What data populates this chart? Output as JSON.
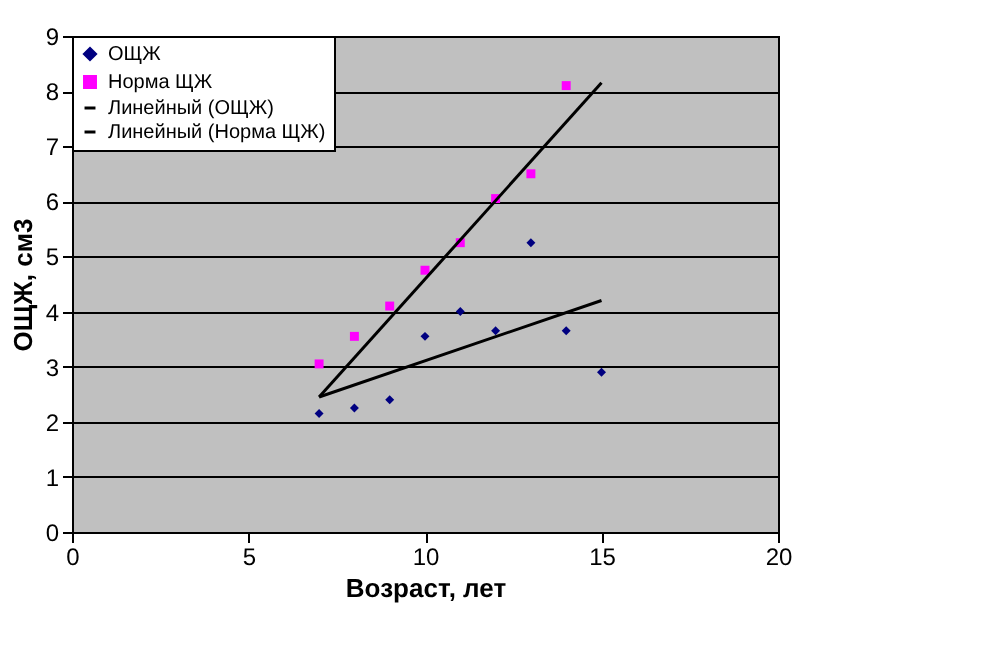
{
  "chart_data": {
    "type": "scatter",
    "xlabel": "Возраст, лет",
    "ylabel": "ОЩЖ, см3",
    "xlim": [
      0,
      20
    ],
    "xticks": [
      0,
      5,
      10,
      15,
      20
    ],
    "ylim": [
      0,
      9
    ],
    "yticks": [
      0,
      1,
      2,
      3,
      4,
      5,
      6,
      7,
      8,
      9
    ],
    "grid": "y",
    "legend": "top left",
    "series": [
      {
        "name": "ОЩЖ",
        "marker": "diamond",
        "color": "#000080",
        "x": [
          7,
          8,
          9,
          10,
          11,
          12,
          13,
          14,
          15
        ],
        "values": [
          2.15,
          2.25,
          2.4,
          3.55,
          4.0,
          3.65,
          5.25,
          3.65,
          2.9
        ]
      },
      {
        "name": "Норма ЩЖ",
        "marker": "square",
        "color": "#ff00ff",
        "x": [
          7,
          8,
          9,
          10,
          11,
          12,
          13,
          14
        ],
        "values": [
          3.05,
          3.55,
          4.1,
          4.75,
          5.25,
          6.05,
          6.5,
          8.1
        ]
      },
      {
        "name": "Линейный (ОЩЖ)",
        "type": "line",
        "marker": "none",
        "color": "#000000",
        "x": [
          7,
          15
        ],
        "values": [
          2.45,
          4.2
        ]
      },
      {
        "name": "Линейный (Норма ЩЖ)",
        "type": "line",
        "marker": "none",
        "color": "#000000",
        "x": [
          7,
          15
        ],
        "values": [
          2.45,
          8.15
        ]
      }
    ]
  }
}
